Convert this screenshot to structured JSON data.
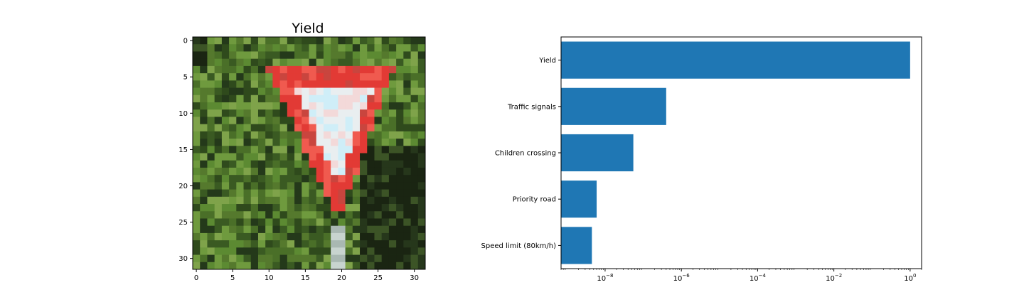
{
  "image_panel": {
    "title": "Yield",
    "x_ticks": [
      "0",
      "5",
      "10",
      "15",
      "20",
      "25",
      "30"
    ],
    "y_ticks": [
      "0",
      "5",
      "10",
      "15",
      "20",
      "25",
      "30"
    ],
    "pixel_grid": 32
  },
  "chart_data": {
    "type": "bar",
    "orientation": "horizontal",
    "xscale": "log",
    "title": "",
    "xlabel": "",
    "ylabel": "",
    "categories": [
      "Yield",
      "Traffic signals",
      "Children crossing",
      "Priority road",
      "Speed limit (80km/h)"
    ],
    "values": [
      0.999999,
      4e-07,
      5.5e-08,
      6e-09,
      4.5e-09
    ],
    "xlim": [
      7e-10,
      2
    ],
    "x_tick_labels": [
      {
        "base": "10",
        "exp": "−8",
        "value": 1e-08
      },
      {
        "base": "10",
        "exp": "−6",
        "value": 1e-06
      },
      {
        "base": "10",
        "exp": "−4",
        "value": 0.0001
      },
      {
        "base": "10",
        "exp": "−2",
        "value": 0.01
      },
      {
        "base": "10",
        "exp": "0",
        "value": 1
      }
    ],
    "bar_color": "#1f77b4",
    "grid": false
  }
}
